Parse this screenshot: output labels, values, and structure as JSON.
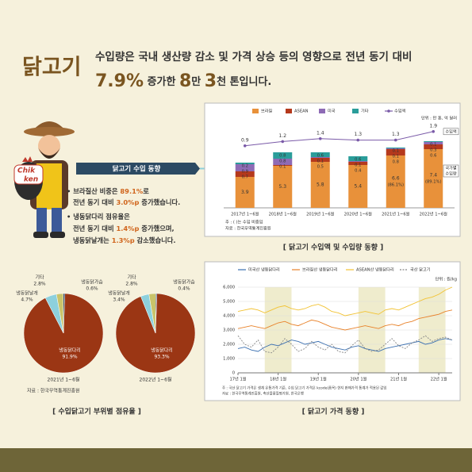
{
  "header": {
    "title": "닭고기",
    "line1": "수입량은 국내 생산량 감소 및 가격 상승 등의 영향으로 전년 동기 대비",
    "line2": [
      "7.9%",
      " 증가한 ",
      "8",
      "만 ",
      "3",
      "천 톤",
      "입니다."
    ]
  },
  "badge": [
    "Chik",
    "ken"
  ],
  "import_trend": {
    "title": "닭고기 수입 동향",
    "lines": [
      [
        "• 브라질산 비중은 ",
        "89.1%",
        "로"
      ],
      [
        "전년 동기 대비 ",
        "3.0%p",
        " 증가했습니다."
      ],
      [
        "• 냉동닭다리 점유율은"
      ],
      [
        "전년 동기 대비 ",
        "1.4%p",
        " 증가했으며,"
      ],
      [
        "냉동닭날개는 ",
        "1.3%p",
        " 감소했습니다."
      ]
    ]
  },
  "pie_section": {
    "caption": "[ 수입닭고기 부위별 점유율 ]",
    "source": "자료 : 한국무역통계진흥원"
  },
  "chart_data": [
    {
      "type": "bar",
      "stacked": true,
      "unit": "단위 : 만 톤, 억 달러",
      "categories": [
        "2017년 1~6월",
        "2018년 1~6월",
        "2019년 1~6월",
        "2020년 1~6월",
        "2021년 1~6월",
        "2022년 1~6월"
      ],
      "series": [
        {
          "name": "브라질",
          "color": "#e8913a",
          "values": [
            3.9,
            5.3,
            5.8,
            5.4,
            6.6,
            7.4
          ]
        },
        {
          "name": "ASEAN",
          "color": "#b5391c",
          "values": [
            0.7,
            0.1,
            0.5,
            0.4,
            0.8,
            0.6
          ]
        },
        {
          "name": "미국",
          "color": "#8e6bb5",
          "values": [
            0.9,
            0.8,
            0.1,
            0.1,
            0.1,
            0.3
          ]
        },
        {
          "name": "기타",
          "color": "#2a9d9a",
          "values": [
            0.2,
            0.8,
            0.6,
            0.6,
            0.1,
            0.1
          ]
        },
        {
          "name": "수입액",
          "type": "line",
          "axis": "y2",
          "color": "#7a5aa8",
          "values": [
            0.9,
            1.2,
            1.4,
            1.3,
            1.3,
            1.9
          ]
        }
      ],
      "share_labels": [
        null,
        null,
        null,
        null,
        "(86.1%)",
        "(89.1%)"
      ],
      "side_labels": {
        "line": "수입액",
        "bars": [
          "국가별",
          "수입량"
        ]
      },
      "notes": [
        "주 : ( )는 수입 비중임",
        "자료 : 한국무역통계진흥원"
      ],
      "caption": "[ 닭고기 수입액 및 수입량 동향 ]"
    },
    {
      "type": "pie",
      "subtitle": "2021년 1~6월",
      "categories": [
        "냉동닭다리",
        "냉동닭날개",
        "기타",
        "냉동닭가슴"
      ],
      "values": [
        91.9,
        4.7,
        2.8,
        0.6
      ],
      "value_labels": [
        "91.9%",
        "4.7%",
        "2.8%",
        "0.6%"
      ],
      "colors": [
        "#9b3614",
        "#8dd0dc",
        "#c9c36a",
        "#1d3557"
      ]
    },
    {
      "type": "pie",
      "subtitle": "2022년 1~6월",
      "categories": [
        "냉동닭다리",
        "냉동닭날개",
        "기타",
        "냉동닭가슴"
      ],
      "values": [
        93.3,
        3.4,
        2.8,
        0.4
      ],
      "value_labels": [
        "93.3%",
        "3.4%",
        "2.8%",
        "0.4%"
      ],
      "colors": [
        "#9b3614",
        "#8dd0dc",
        "#c9c36a",
        "#1d3557"
      ]
    },
    {
      "type": "line",
      "unit": "단위 : 원/kg",
      "categories": [
        "17년 1월",
        null,
        null,
        null,
        null,
        null,
        "18년 1월",
        null,
        null,
        null,
        null,
        null,
        "19년 1월",
        null,
        null,
        null,
        null,
        null,
        "20년 1월",
        null,
        null,
        null,
        null,
        null,
        "21년 1월",
        null,
        null,
        null,
        null,
        null,
        "22년 1월",
        null,
        null
      ],
      "ylim": [
        0,
        6000
      ],
      "yticks": [
        0,
        {
          "value": 1000,
          "label": "1,000"
        },
        {
          "value": 2000,
          "label": "2,000"
        },
        {
          "value": 3000,
          "label": "3,000"
        },
        {
          "value": 4000,
          "label": "4,000"
        },
        {
          "value": 5000,
          "label": "5,000"
        },
        {
          "value": 6000,
          "label": "6,000"
        }
      ],
      "grid": true,
      "series": [
        {
          "name": "미국산 냉동닭다리",
          "color": "#3a6fb0",
          "values": [
            1700,
            1800,
            1600,
            1500,
            1800,
            2000,
            1900,
            2100,
            2300,
            2200,
            2000,
            2100,
            2200,
            2000,
            1800,
            1700,
            1600,
            1800,
            1900,
            1700,
            1600,
            1500,
            1700,
            1800,
            1900,
            2000,
            2100,
            2200,
            2000,
            2100,
            2300,
            2400,
            2300
          ]
        },
        {
          "name": "브라질산 냉동닭다리",
          "color": "#e8822a",
          "values": [
            3100,
            3200,
            3300,
            3200,
            3100,
            3300,
            3500,
            3600,
            3400,
            3300,
            3500,
            3700,
            3600,
            3400,
            3200,
            3100,
            3000,
            3100,
            3200,
            3300,
            3200,
            3100,
            3300,
            3400,
            3300,
            3500,
            3600,
            3800,
            3900,
            4000,
            4100,
            4300,
            4400
          ]
        },
        {
          "name": "ASEAN산 냉동닭다리",
          "color": "#f2c232",
          "values": [
            4300,
            4400,
            4500,
            4400,
            4200,
            4400,
            4600,
            4700,
            4500,
            4400,
            4500,
            4700,
            4800,
            4600,
            4300,
            4200,
            4000,
            4100,
            4200,
            4300,
            4200,
            4100,
            4400,
            4500,
            4400,
            4600,
            4800,
            5000,
            5200,
            5300,
            5500,
            5800,
            6000
          ]
        },
        {
          "name": "국산 닭고기",
          "color": "#888888",
          "dash": true,
          "values": [
            2600,
            2000,
            1800,
            2300,
            1500,
            1400,
            1800,
            2400,
            2000,
            1500,
            1700,
            2200,
            1800,
            1600,
            2000,
            1500,
            1400,
            1900,
            2300,
            1700,
            1500,
            1600,
            2000,
            2400,
            1900,
            1700,
            2100,
            2300,
            2600,
            2200,
            2400,
            2500,
            2300
          ]
        }
      ],
      "notes": [
        "주 : 국산 닭고기 가격은 생계 유통가격 기준, 수입 닭고기 가격은 kcode(품목) 현지 판매가격 통계가 적용된 값임",
        "자료 : 한국무역통계진흥원, 축산물품질평가원, 한국은행"
      ],
      "caption": "[ 닭고기 가격 동향 ]"
    }
  ]
}
